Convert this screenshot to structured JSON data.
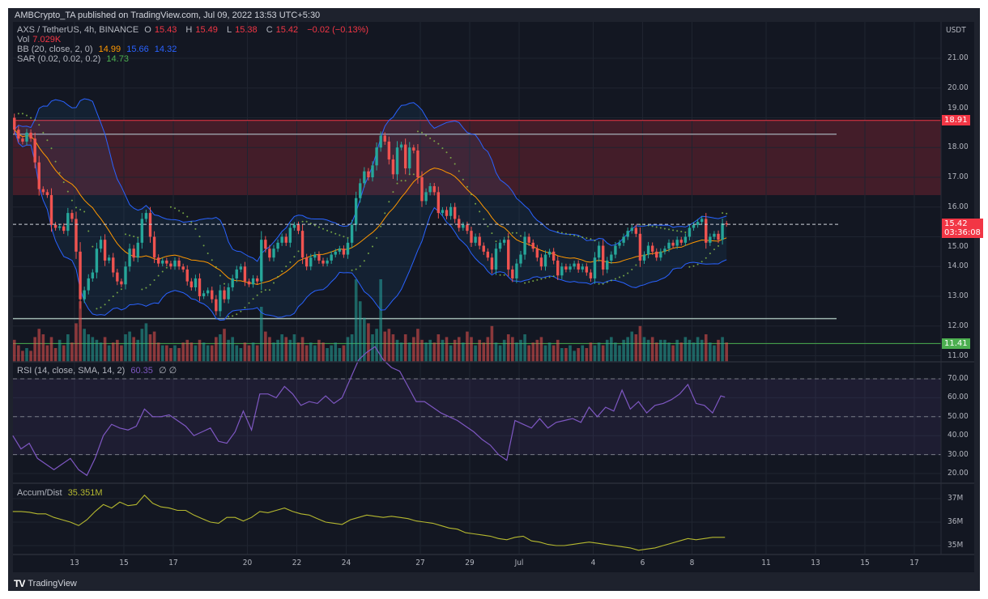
{
  "header": {
    "published": "AMBCrypto_TA published on TradingView.com, Jul 09, 2022 13:53 UTC+5:30"
  },
  "legend": {
    "symbol": "AXS / TetherUS, 4h, BINANCE",
    "ohlc": [
      {
        "k": "O",
        "v": "15.43"
      },
      {
        "k": "H",
        "v": "15.49"
      },
      {
        "k": "L",
        "v": "15.38"
      },
      {
        "k": "C",
        "v": "15.42"
      }
    ],
    "change": "−0.02 (−0.13%)",
    "vol": {
      "label": "Vol",
      "value": "7.029K"
    },
    "bb": {
      "label": "BB (20, close, 2, 0)",
      "basis": "14.99",
      "upper": "15.66",
      "lower": "14.32"
    },
    "sar": {
      "label": "SAR (0.02, 0.02, 0.2)",
      "value": "14.73"
    },
    "rsi": {
      "label": "RSI (14, close, SMA, 14, 2)",
      "value": "60.35",
      "extra": "∅ ∅"
    },
    "ad": {
      "label": "Accum/Dist",
      "value": "35.351M"
    }
  },
  "price_axis": {
    "currency": "USDT",
    "ticks": [
      21,
      20,
      19,
      18,
      17,
      16,
      15,
      14,
      13,
      12,
      11
    ]
  },
  "rsi_axis": {
    "ticks": [
      70,
      60,
      50,
      40,
      30,
      20
    ]
  },
  "ad_axis": {
    "ticks": [
      {
        "v": 37,
        "label": "37M"
      },
      {
        "v": 36,
        "label": "36M"
      },
      {
        "v": 35,
        "label": "35M"
      }
    ]
  },
  "price_tags": {
    "resistance": {
      "value": "18.91",
      "color": "#f23645"
    },
    "last": {
      "value": "15.42",
      "countdown": "03:36:08",
      "color": "#f23645"
    },
    "support": {
      "value": "11.41",
      "color": "#4caf50"
    }
  },
  "time_axis": {
    "ticks": [
      {
        "label": "13",
        "date": "2022-06-13"
      },
      {
        "label": "15",
        "date": "2022-06-15"
      },
      {
        "label": "17",
        "date": "2022-06-17"
      },
      {
        "label": "20",
        "date": "2022-06-20"
      },
      {
        "label": "22",
        "date": "2022-06-22"
      },
      {
        "label": "24",
        "date": "2022-06-24"
      },
      {
        "label": "27",
        "date": "2022-06-27"
      },
      {
        "label": "29",
        "date": "2022-06-29"
      },
      {
        "label": "Jul",
        "date": "2022-07-01"
      },
      {
        "label": "4",
        "date": "2022-07-04"
      },
      {
        "label": "6",
        "date": "2022-07-06"
      },
      {
        "label": "8",
        "date": "2022-07-08"
      },
      {
        "label": "11",
        "date": "2022-07-11"
      },
      {
        "label": "13",
        "date": "2022-07-13"
      },
      {
        "label": "15",
        "date": "2022-07-15"
      },
      {
        "label": "17",
        "date": "2022-07-17"
      }
    ]
  },
  "colors": {
    "up": "#26a69a",
    "down": "#ef5350",
    "bb_basis": "#ff9800",
    "bb_band": "#2962ff",
    "sar": "#8bc34a",
    "rsi": "#7e57c2",
    "ad": "#b5b82f",
    "zone": "#f23645",
    "support": "#4caf50"
  },
  "footer": {
    "brand": "TradingView"
  },
  "chart_data": {
    "type": "candlestick",
    "symbol": "AXS / TetherUS",
    "interval": "4h",
    "first_candle": "2022-06-10 12:00",
    "ylim": [
      10.8,
      21.7
    ],
    "grid": true,
    "close": [
      18.6,
      18.3,
      18.2,
      18.5,
      18.3,
      17.5,
      16.6,
      16.5,
      16.4,
      15.4,
      15.3,
      15.35,
      15.2,
      15.8,
      15.6,
      14.5,
      12.9,
      13.2,
      13.6,
      13.8,
      14.6,
      14.9,
      14.2,
      14.3,
      13.8,
      13.5,
      13.4,
      14.0,
      14.6,
      14.3,
      14.8,
      15.6,
      15.8,
      15.0,
      14.3,
      14.1,
      14.2,
      14.1,
      14.0,
      14.2,
      14.0,
      13.9,
      13.5,
      13.3,
      13.6,
      13.0,
      13.1,
      13.2,
      12.9,
      12.5,
      13.2,
      12.9,
      13.3,
      13.6,
      13.9,
      14.0,
      13.5,
      13.4,
      13.6,
      13.5,
      14.9,
      14.6,
      14.3,
      14.6,
      14.8,
      15.0,
      14.8,
      15.3,
      15.4,
      15.2,
      14.3,
      14.0,
      14.3,
      14.4,
      14.2,
      14.1,
      14.2,
      14.4,
      14.5,
      14.6,
      14.4,
      14.8,
      15.4,
      16.3,
      16.8,
      17.2,
      17.0,
      17.4,
      18.0,
      18.4,
      18.2,
      17.6,
      17.1,
      18.0,
      18.1,
      17.3,
      18.0,
      17.9,
      17.0,
      16.2,
      16.5,
      16.7,
      16.5,
      15.8,
      15.9,
      15.7,
      16.0,
      15.6,
      15.3,
      15.4,
      15.2,
      14.8,
      15.0,
      14.7,
      14.5,
      14.3,
      13.9,
      14.6,
      14.8,
      14.9,
      13.9,
      13.6,
      14.1,
      14.4,
      15.0,
      14.8,
      14.6,
      14.3,
      14.0,
      14.4,
      14.5,
      14.2,
      13.7,
      14.0,
      13.9,
      14.0,
      14.1,
      13.9,
      14.0,
      13.8,
      13.6,
      14.3,
      14.7,
      13.9,
      14.2,
      14.4,
      14.7,
      14.8,
      15.0,
      15.2,
      15.3,
      15.1,
      14.2,
      14.4,
      14.7,
      14.5,
      14.3,
      14.5,
      14.6,
      14.8,
      14.7,
      14.9,
      14.8,
      15.0,
      15.3,
      15.4,
      15.5,
      15.6,
      14.8,
      15.0,
      15.1,
      14.9,
      15.45,
      15.42
    ],
    "first_open": 19.0,
    "volume_k": [
      8,
      6,
      4,
      5,
      4,
      9,
      12,
      10,
      6,
      9,
      5,
      8,
      6,
      10,
      7,
      14,
      22,
      12,
      10,
      9,
      8,
      7,
      9,
      6,
      7,
      8,
      6,
      10,
      11,
      9,
      8,
      12,
      14,
      10,
      11,
      7,
      6,
      6,
      5,
      6,
      5,
      7,
      8,
      7,
      6,
      8,
      7,
      6,
      6,
      9,
      10,
      12,
      8,
      9,
      6,
      5,
      7,
      6,
      7,
      6,
      20,
      11,
      9,
      7,
      8,
      10,
      9,
      8,
      10,
      7,
      9,
      6,
      7,
      6,
      8,
      7,
      5,
      6,
      7,
      5,
      6,
      9,
      10,
      30,
      22,
      16,
      14,
      10,
      12,
      30,
      11,
      12,
      10,
      8,
      7,
      10,
      7,
      9,
      12,
      8,
      7,
      8,
      7,
      10,
      8,
      9,
      6,
      8,
      9,
      7,
      11,
      9,
      6,
      8,
      7,
      9,
      13,
      7,
      6,
      8,
      10,
      9,
      7,
      8,
      10,
      6,
      7,
      8,
      9,
      6,
      7,
      6,
      8,
      5,
      5,
      6,
      4,
      5,
      6,
      5,
      7,
      6,
      7,
      6,
      8,
      9,
      7,
      6,
      8,
      9,
      11,
      10,
      13,
      9,
      8,
      9,
      7,
      8,
      8,
      7,
      6,
      8,
      7,
      9,
      8,
      7,
      9,
      8,
      10,
      7,
      6,
      8,
      9,
      7.029
    ],
    "levels": {
      "zone": [
        16.4,
        18.91
      ],
      "resistance_line": 18.45,
      "last_price": 15.42,
      "support_upper": 12.25,
      "support": 11.41
    },
    "indicator_times": [
      "2022-06-10 12:00",
      "2022-06-10 20:00",
      "2022-06-11 04:00",
      "2022-06-11 12:00",
      "2022-06-11 20:00",
      "2022-06-12 04:00",
      "2022-06-12 12:00",
      "2022-06-12 20:00",
      "2022-06-13 04:00",
      "2022-06-13 12:00",
      "2022-06-13 20:00",
      "2022-06-14 04:00",
      "2022-06-14 12:00",
      "2022-06-14 20:00",
      "2022-06-15 04:00",
      "2022-06-15 12:00",
      "2022-06-15 20:00",
      "2022-06-16 04:00",
      "2022-06-16 12:00",
      "2022-06-16 20:00",
      "2022-06-17 04:00",
      "2022-06-17 12:00",
      "2022-06-17 20:00",
      "2022-06-18 04:00",
      "2022-06-18 12:00",
      "2022-06-18 20:00",
      "2022-06-19 04:00",
      "2022-06-19 12:00",
      "2022-06-19 20:00",
      "2022-06-20 04:00",
      "2022-06-20 12:00",
      "2022-06-20 20:00",
      "2022-06-21 04:00",
      "2022-06-21 12:00",
      "2022-06-21 20:00",
      "2022-06-22 04:00",
      "2022-06-22 12:00",
      "2022-06-22 20:00",
      "2022-06-23 04:00",
      "2022-06-23 12:00",
      "2022-06-23 20:00",
      "2022-06-24 04:00",
      "2022-06-24 12:00",
      "2022-06-24 20:00",
      "2022-06-25 04:00",
      "2022-06-25 12:00",
      "2022-06-25 20:00",
      "2022-06-26 04:00",
      "2022-06-26 12:00",
      "2022-06-26 20:00",
      "2022-06-27 04:00",
      "2022-06-27 12:00",
      "2022-06-27 20:00",
      "2022-06-28 04:00",
      "2022-06-28 12:00",
      "2022-06-28 20:00",
      "2022-06-29 04:00",
      "2022-06-29 12:00",
      "2022-06-29 20:00",
      "2022-06-30 04:00",
      "2022-06-30 12:00",
      "2022-06-30 20:00",
      "2022-07-01 04:00",
      "2022-07-01 12:00",
      "2022-07-01 20:00",
      "2022-07-02 04:00",
      "2022-07-02 12:00",
      "2022-07-02 20:00",
      "2022-07-03 04:00",
      "2022-07-03 12:00",
      "2022-07-03 20:00",
      "2022-07-04 04:00",
      "2022-07-04 12:00",
      "2022-07-04 20:00",
      "2022-07-05 04:00",
      "2022-07-05 12:00",
      "2022-07-05 20:00",
      "2022-07-06 04:00",
      "2022-07-06 12:00",
      "2022-07-06 20:00",
      "2022-07-07 04:00",
      "2022-07-07 12:00",
      "2022-07-07 20:00",
      "2022-07-08 04:00",
      "2022-07-08 12:00",
      "2022-07-08 20:00",
      "2022-07-09 04:00",
      "2022-07-09 08:00"
    ],
    "rsi": {
      "values": [
        40,
        33,
        36,
        28,
        25,
        22,
        25,
        28,
        22,
        19,
        28,
        40,
        46,
        44,
        43,
        45,
        54,
        50,
        50,
        51,
        48,
        45,
        40,
        42,
        44,
        37,
        36,
        42,
        53,
        43,
        62,
        62,
        60,
        66,
        62,
        56,
        58,
        57,
        61,
        57,
        60,
        70,
        80,
        84,
        87,
        80,
        76,
        74,
        66,
        58,
        58,
        55,
        52,
        50,
        48,
        45,
        42,
        38,
        35,
        30,
        27,
        48,
        46,
        44,
        49,
        44,
        47,
        48,
        49,
        47,
        55,
        50,
        55,
        53,
        64,
        54,
        58,
        52,
        56,
        57,
        59,
        62,
        67,
        57,
        56,
        52,
        61,
        60.35
      ],
      "ylim": [
        15,
        90
      ],
      "bands": [
        70,
        50,
        30
      ]
    },
    "accum_dist_m": {
      "values": [
        36.45,
        36.45,
        36.42,
        36.35,
        36.35,
        36.2,
        36.1,
        36.0,
        35.85,
        36.1,
        36.45,
        36.75,
        36.6,
        36.85,
        36.7,
        36.75,
        37.15,
        36.8,
        36.65,
        36.6,
        36.5,
        36.5,
        36.3,
        36.15,
        36.0,
        35.95,
        36.2,
        36.2,
        36.05,
        36.2,
        36.45,
        36.4,
        36.5,
        36.6,
        36.45,
        36.35,
        36.3,
        36.15,
        36.0,
        35.95,
        35.9,
        36.1,
        36.2,
        36.3,
        36.25,
        36.2,
        36.25,
        36.2,
        36.15,
        36.05,
        36.0,
        35.95,
        35.85,
        35.75,
        35.7,
        35.55,
        35.5,
        35.45,
        35.4,
        35.3,
        35.25,
        35.35,
        35.4,
        35.2,
        35.15,
        35.05,
        35.0,
        35.0,
        35.05,
        35.1,
        35.15,
        35.1,
        35.05,
        35.0,
        34.95,
        34.9,
        34.8,
        34.85,
        34.9,
        35.0,
        35.1,
        35.2,
        35.3,
        35.25,
        35.3,
        35.35,
        35.35,
        35.351
      ]
    }
  }
}
